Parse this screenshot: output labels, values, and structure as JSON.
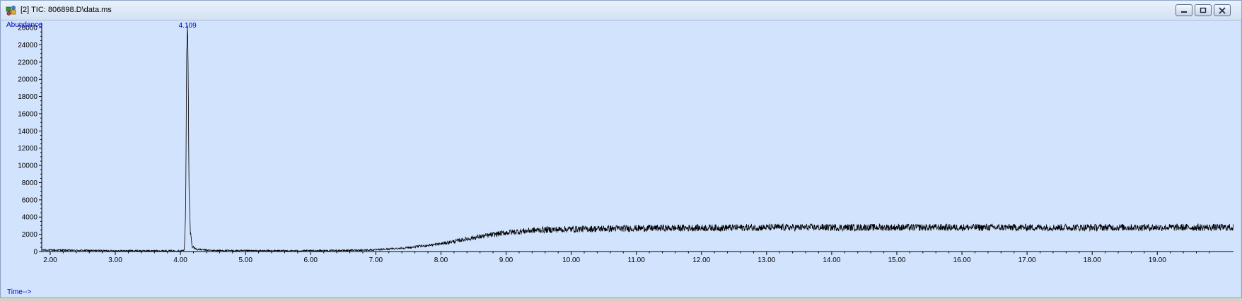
{
  "window": {
    "title": "[2] TIC: 806898.D\\data.ms",
    "icons": {
      "app": "chromatogram-app-icon",
      "minimize": "minimize-icon",
      "restore": "restore-icon",
      "close": "close-icon"
    }
  },
  "colors": {
    "plot_background": "#d2e3fd",
    "axis_label": "#0000cc",
    "trace": "#000000",
    "peak_label": "#0000cc"
  },
  "chart_data": {
    "type": "line",
    "ylabel": "Abundance",
    "xlabel": "Time-->",
    "xlim": [
      1.87,
      20.17
    ],
    "ylim": [
      0,
      26500
    ],
    "x_ticks": [
      "2.00",
      "3.00",
      "4.00",
      "5.00",
      "6.00",
      "7.00",
      "8.00",
      "9.00",
      "10.00",
      "11.00",
      "12.00",
      "13.00",
      "14.00",
      "15.00",
      "16.00",
      "17.00",
      "18.00",
      "19.00"
    ],
    "y_ticks": [
      "0",
      "2000",
      "4000",
      "6000",
      "8000",
      "10000",
      "12000",
      "14000",
      "16000",
      "18000",
      "20000",
      "22000",
      "24000",
      "26000"
    ],
    "grid": false,
    "legend": "none",
    "peak_annotations": [
      {
        "label": "4.109",
        "x": 4.109
      }
    ],
    "series": [
      {
        "points": [
          [
            1.87,
            180
          ],
          [
            2.5,
            130
          ],
          [
            3.0,
            100
          ],
          [
            3.5,
            90
          ],
          [
            4.0,
            90
          ],
          [
            4.06,
            150
          ],
          [
            4.08,
            5000
          ],
          [
            4.095,
            22500
          ],
          [
            4.109,
            26600
          ],
          [
            4.12,
            20000
          ],
          [
            4.13,
            8000
          ],
          [
            4.15,
            2500
          ],
          [
            4.18,
            600
          ],
          [
            4.25,
            250
          ],
          [
            4.5,
            120
          ],
          [
            5.0,
            100
          ],
          [
            5.5,
            90
          ],
          [
            6.0,
            100
          ],
          [
            6.5,
            130
          ],
          [
            7.0,
            200
          ],
          [
            7.5,
            450
          ],
          [
            8.0,
            900
          ],
          [
            8.5,
            1600
          ],
          [
            9.0,
            2200
          ],
          [
            9.5,
            2500
          ],
          [
            10.0,
            2600
          ],
          [
            11.0,
            2700
          ],
          [
            12.0,
            2750
          ],
          [
            13.0,
            2800
          ],
          [
            14.0,
            2800
          ],
          [
            15.0,
            2800
          ],
          [
            16.0,
            2800
          ],
          [
            17.0,
            2800
          ],
          [
            18.0,
            2800
          ],
          [
            19.0,
            2800
          ],
          [
            20.17,
            2800
          ]
        ]
      }
    ]
  }
}
